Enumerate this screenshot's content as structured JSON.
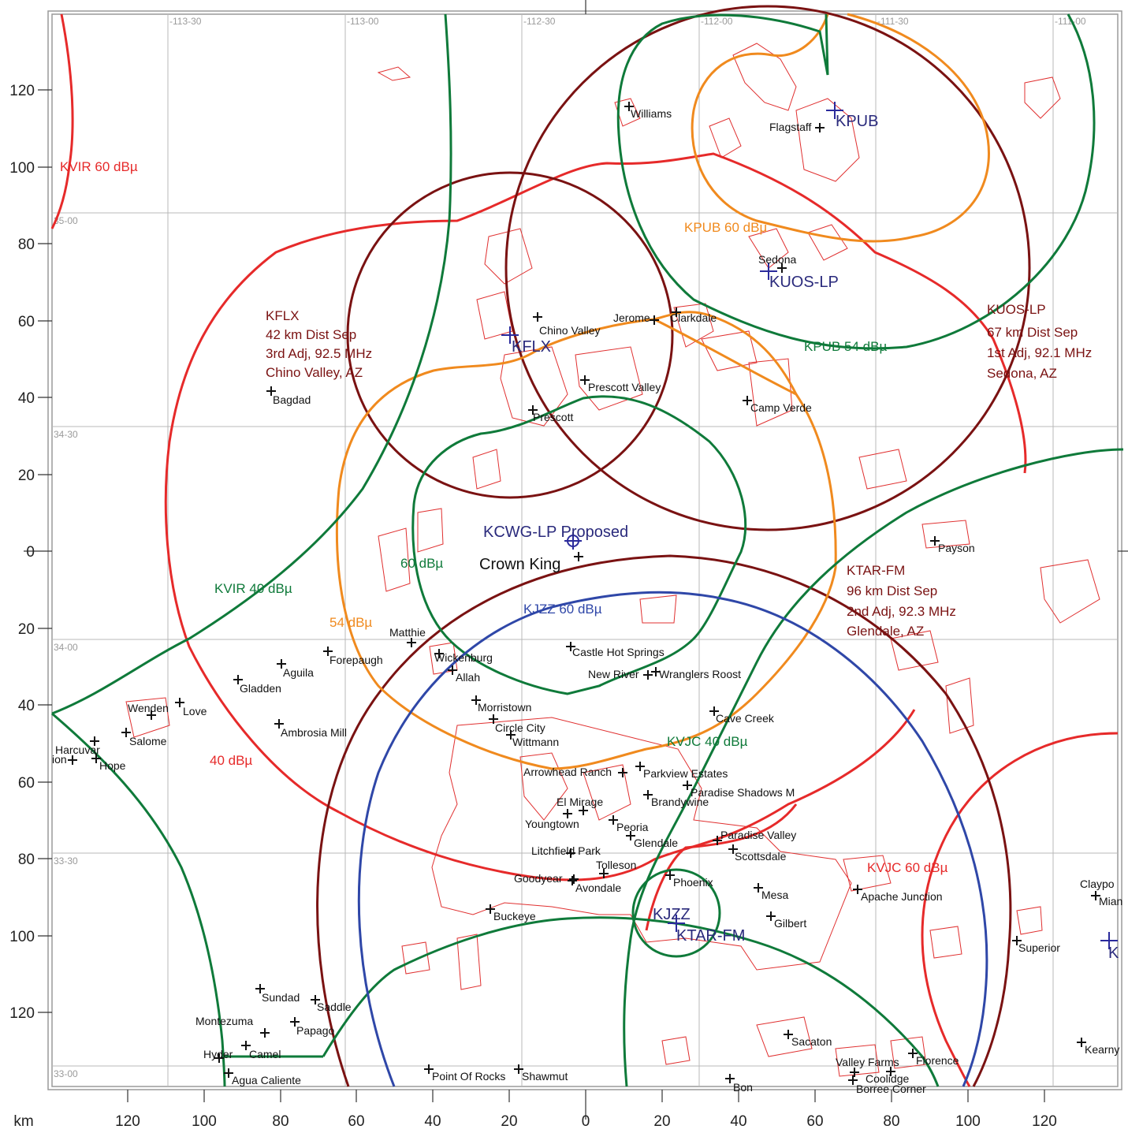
{
  "colors": {
    "red": "#e62a2a",
    "darkred": "#7a1212",
    "orange": "#f08a1e",
    "green": "#0f7a3a",
    "blue": "#2f47a8",
    "station": "#2a2a7c"
  },
  "axes": {
    "unit": "km",
    "x_ticks": [
      "120",
      "100",
      "80",
      "60",
      "40",
      "20",
      "0",
      "20",
      "40",
      "60",
      "80",
      "100",
      "120"
    ],
    "y_ticks": [
      "120",
      "100",
      "80",
      "60",
      "40",
      "20",
      "0",
      "20",
      "40",
      "60",
      "80",
      "100",
      "120"
    ],
    "lon_labels": [
      "-113-30",
      "-113-00",
      "-112-30",
      "-112-00",
      "-111-30",
      "-111-00"
    ],
    "lat_labels": [
      "35-00",
      "34-30",
      "34-00",
      "33-30",
      "33-00"
    ]
  },
  "stations": {
    "kcwg": "KCWG-LP  Proposed",
    "kpub": "KPUB",
    "kuos": "KUOS-LP",
    "kflx": "KFLX",
    "kjzz": "KJZZ",
    "ktar": "KTAR-FM",
    "edge": "K"
  },
  "contour_labels": {
    "kvir60": "KVIR 60 dBµ",
    "kvir40": "KVIR 40 dBµ",
    "red40": "40 dBµ",
    "orange54": "54 dBµ",
    "green60": "60 dBµ",
    "kpub60": "KPUB 60 dBµ",
    "kpub54": "KPUB 54 dBµ",
    "kjzz60": "KJZZ 60 dBµ",
    "kvjc40": "KVJC 40 dBµ",
    "kvjc60": "KVJC 60 dBµ"
  },
  "station_notes": {
    "kflx": [
      "KFLX",
      "42 km Dist Sep",
      "3rd Adj, 92.5 MHz",
      "Chino Valley, AZ"
    ],
    "kuos": [
      "KUOS-LP",
      "67 km Dist Sep",
      "1st Adj, 92.1 MHz",
      "Sedona, AZ"
    ],
    "ktar": [
      "KTAR-FM",
      "96 km Dist Sep",
      "2nd Adj, 92.3 MHz",
      "Glendale, AZ"
    ]
  },
  "crown_king": "Crown King",
  "cities": [
    "Williams",
    "Flagstaff",
    "Sedona",
    "Chino Valley",
    "Jerome",
    "Clarkdale",
    "Prescott Valley",
    "Prescott",
    "Camp Verde",
    "Bagdad",
    "Payson",
    "Matthie",
    "Wickenburg",
    "Allah",
    "Castle Hot Springs",
    "New River",
    "Wranglers Roost",
    "Forepaugh",
    "Aguila",
    "Gladden",
    "Wenden",
    "Love",
    "Salome",
    "Harcuvar",
    "ion",
    "Hope",
    "Ambrosia Mill",
    "Morristown",
    "Circle City",
    "Wittmann",
    "Cave Creek",
    "Arrowhead Ranch",
    "Parkview Estates",
    "Paradise Shadows M",
    "El Mirage",
    "Brandywine",
    "Youngtown",
    "Peoria",
    "Glendale",
    "Paradise Valley",
    "Scottsdale",
    "Litchfield Park",
    "Tolleson",
    "Goodyear",
    "Avondale",
    "Phoenix",
    "Mesa",
    "Apache Junction",
    "Buckeye",
    "Gilbert",
    "Superior",
    "Claypo",
    "Mian",
    "Sundad",
    "Saddle",
    "Papago",
    "Montezuma",
    "Hyder",
    "Camel",
    "Agua Caliente",
    "Sacaton",
    "Valley Farms",
    "Florence",
    "Kearny",
    "Point Of Rocks",
    "Shawmut",
    "Bon",
    "Borree Corner",
    "Coolidge"
  ]
}
